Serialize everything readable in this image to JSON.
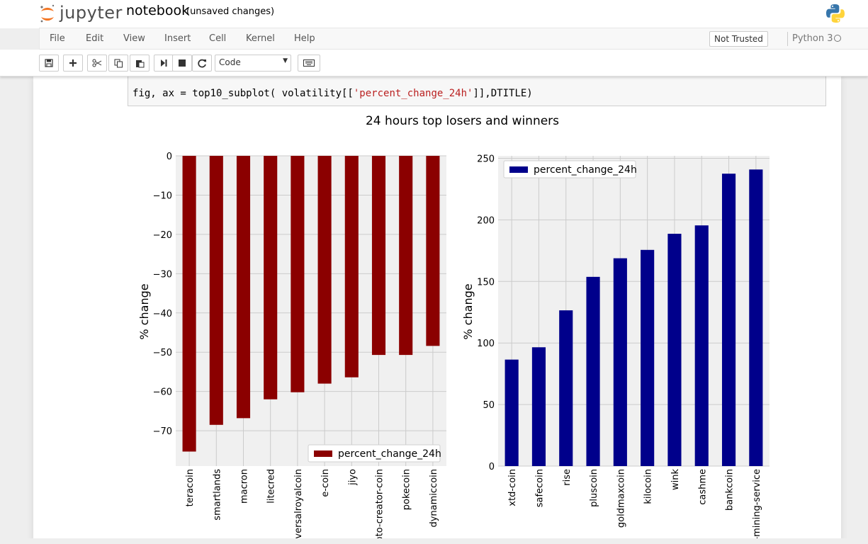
{
  "header": {
    "logo_text": "jupyter",
    "notebook_name": "notebook",
    "save_status": "(unsaved changes)"
  },
  "menu": {
    "items": [
      "File",
      "Edit",
      "View",
      "Insert",
      "Cell",
      "Kernel",
      "Help"
    ],
    "trusted_label": "Not Trusted",
    "kernel_name": "Python 3"
  },
  "toolbar": {
    "cell_type": "Code",
    "icons": [
      "save-icon",
      "plus-icon",
      "cut-icon",
      "copy-icon",
      "paste-icon",
      "step-run-icon",
      "stop-icon",
      "restart-icon",
      "keyboard-icon"
    ]
  },
  "code": {
    "prefix": "fig, ax = top10_subplot( volatility[[",
    "string": "'percent_change_24h'",
    "suffix": "]],DTITLE)"
  },
  "colors": {
    "losers": "#8b0000",
    "winners": "#00008b",
    "plot_bg": "#f0f0f0"
  },
  "chart_data": [
    {
      "type": "bar",
      "title": "24 hours top losers and winners",
      "ylabel": "% change",
      "xlabel": "",
      "ylim": [
        -79,
        0
      ],
      "yticks": [
        0,
        -10,
        -20,
        -30,
        -40,
        -50,
        -60,
        -70
      ],
      "grid": true,
      "legend_position": "bottom-right",
      "categories": [
        "teracoin",
        "smartlands",
        "macron",
        "litecred",
        "universalroyalcoin",
        "e-coin",
        "jiyo",
        "crypto-creator-coin",
        "pokecoin",
        "dynamiccoin"
      ],
      "series": [
        {
          "name": "percent_change_24h",
          "values": [
            -75.3,
            -68.5,
            -66.8,
            -62.0,
            -60.2,
            -58.0,
            -56.4,
            -50.7,
            -50.7,
            -48.4
          ]
        }
      ]
    },
    {
      "type": "bar",
      "title": "",
      "ylabel": "% change",
      "xlabel": "",
      "ylim": [
        0,
        252
      ],
      "yticks": [
        0,
        50,
        100,
        150,
        200,
        250
      ],
      "grid": true,
      "legend_position": "top-left",
      "categories": [
        "xtd-coin",
        "safecoin",
        "rise",
        "pluscoin",
        "goldmaxcoin",
        "kilocoin",
        "wink",
        "cashme",
        "bankcoin",
        "cloud-mining-service"
      ],
      "series": [
        {
          "name": "percent_change_24h",
          "values": [
            86.5,
            96.5,
            126.5,
            153.7,
            168.8,
            175.6,
            188.7,
            195.5,
            237.5,
            240.9
          ]
        }
      ]
    }
  ]
}
